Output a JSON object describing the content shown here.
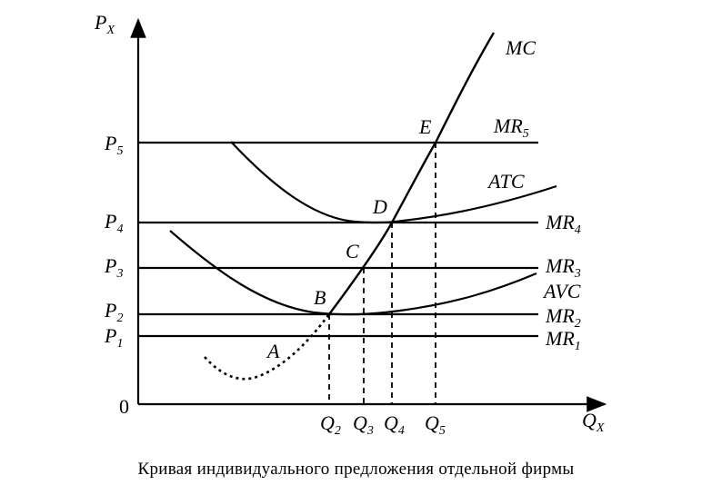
{
  "diagram": {
    "axis_y_label": {
      "main": "P",
      "sub": "X"
    },
    "axis_x_label": {
      "main": "Q",
      "sub": "X"
    },
    "origin_label": "0",
    "price_labels": [
      {
        "main": "P",
        "sub": "5"
      },
      {
        "main": "P",
        "sub": "4"
      },
      {
        "main": "P",
        "sub": "3"
      },
      {
        "main": "P",
        "sub": "2"
      },
      {
        "main": "P",
        "sub": "1"
      }
    ],
    "quantity_labels": [
      {
        "main": "Q",
        "sub": "2"
      },
      {
        "main": "Q",
        "sub": "3"
      },
      {
        "main": "Q",
        "sub": "4"
      },
      {
        "main": "Q",
        "sub": "5"
      }
    ],
    "curve_labels": {
      "mc": "MC",
      "atc": "ATC",
      "avc": "AVC",
      "mr5": {
        "main": "MR",
        "sub": "5"
      },
      "mr4": {
        "main": "MR",
        "sub": "4"
      },
      "mr3": {
        "main": "MR",
        "sub": "3"
      },
      "mr2": {
        "main": "MR",
        "sub": "2"
      },
      "mr1": {
        "main": "MR",
        "sub": "1"
      }
    },
    "points": {
      "a": "A",
      "b": "B",
      "c": "C",
      "d": "D",
      "e": "E"
    }
  },
  "caption": "Кривая индивидуального предложения отдельной фирмы"
}
